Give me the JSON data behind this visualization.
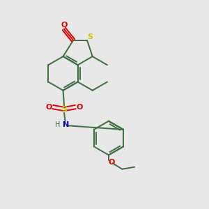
{
  "bg_color": "#e8e8e8",
  "bond_color": "#3a6e3a",
  "S_color": "#c8c800",
  "O_color": "#e00000",
  "N_color": "#0000cc",
  "lw": 1.4,
  "figsize": [
    3.0,
    3.0
  ],
  "dpi": 100,
  "xlim": [
    0,
    10
  ],
  "ylim": [
    0,
    10
  ]
}
